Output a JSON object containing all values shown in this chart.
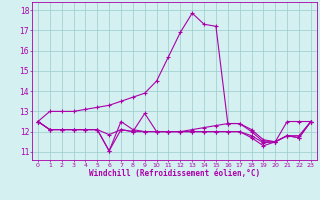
{
  "xlabel": "Windchill (Refroidissement éolien,°C)",
  "hours": [
    0,
    1,
    2,
    3,
    4,
    5,
    6,
    7,
    8,
    9,
    10,
    11,
    12,
    13,
    14,
    15,
    16,
    17,
    18,
    19,
    20,
    21,
    22,
    23
  ],
  "line1": [
    12.5,
    13.0,
    13.0,
    13.0,
    13.1,
    13.2,
    13.3,
    13.5,
    13.7,
    13.9,
    14.5,
    15.7,
    16.9,
    17.85,
    17.3,
    17.2,
    12.4,
    12.4,
    12.1,
    11.6,
    11.5,
    12.5,
    12.5,
    12.5
  ],
  "line2": [
    12.5,
    12.1,
    12.1,
    12.1,
    12.1,
    12.1,
    11.85,
    12.1,
    12.0,
    12.9,
    12.0,
    12.0,
    12.0,
    12.1,
    12.2,
    12.3,
    12.4,
    12.4,
    12.0,
    11.5,
    11.5,
    11.8,
    11.8,
    12.5
  ],
  "line3": [
    12.5,
    12.1,
    12.1,
    12.1,
    12.1,
    12.1,
    11.05,
    12.1,
    12.0,
    12.0,
    12.0,
    12.0,
    12.0,
    12.0,
    12.0,
    12.0,
    12.0,
    12.0,
    11.8,
    11.45,
    11.5,
    11.8,
    11.7,
    12.5
  ],
  "line4": [
    12.5,
    12.1,
    12.1,
    12.1,
    12.1,
    12.1,
    11.05,
    12.5,
    12.1,
    12.0,
    12.0,
    12.0,
    12.0,
    12.0,
    12.0,
    12.0,
    12.0,
    12.0,
    11.7,
    11.3,
    11.5,
    11.8,
    11.7,
    12.5
  ],
  "line_color": "#aa00aa",
  "bg_color": "#d4f0f0",
  "grid_color": "#99cccc",
  "ylim": [
    10.6,
    18.4
  ],
  "yticks": [
    11,
    12,
    13,
    14,
    15,
    16,
    17,
    18
  ],
  "xticks": [
    0,
    1,
    2,
    3,
    4,
    5,
    6,
    7,
    8,
    9,
    10,
    11,
    12,
    13,
    14,
    15,
    16,
    17,
    18,
    19,
    20,
    21,
    22,
    23
  ]
}
